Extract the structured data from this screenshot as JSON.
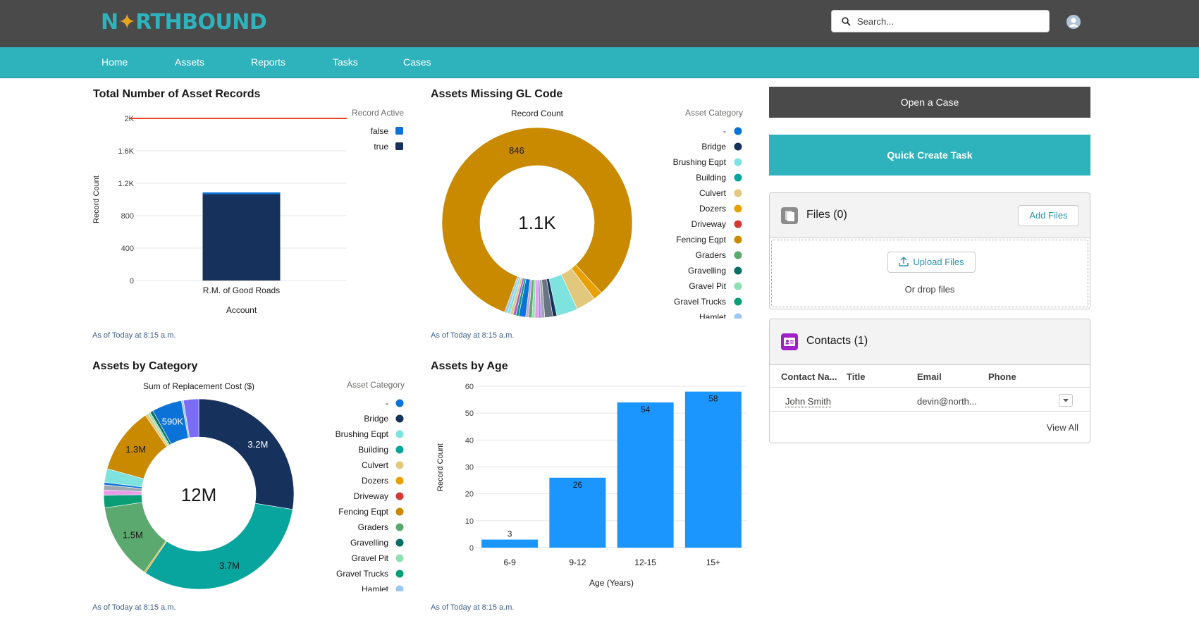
{
  "app": {
    "logo_pre": "N",
    "logo_star": "✦",
    "logo_post": "RTHBOUND",
    "search_placeholder": "Search...",
    "nav": [
      "Home",
      "Assets",
      "Reports",
      "Tasks",
      "Cases"
    ]
  },
  "colors": {
    "header_bg": "#4a4a4a",
    "accent": "#2eb2bb",
    "navy": "#16325c",
    "bar_blue": "#1b96ff",
    "orange": "#c98a00"
  },
  "cards": {
    "c1": {
      "title": "Total Number of Asset Records",
      "note": "As of Today at 8:15 a.m."
    },
    "c2": {
      "title": "Assets Missing GL Code",
      "note": "As of Today at 8:15 a.m."
    },
    "c3": {
      "title": "Assets by Category",
      "note": "As of Today at 8:15 a.m."
    },
    "c4": {
      "title": "Assets by Age",
      "note": "As of Today at 8:15 a.m."
    }
  },
  "chart_data": [
    {
      "type": "bar",
      "stacked": true,
      "categories": [
        "R.M. of Good Roads"
      ],
      "series": [
        {
          "name": "true",
          "values": [
            1065
          ],
          "color": "#16325c"
        },
        {
          "name": "false",
          "values": [
            22
          ],
          "color": "#0b72d7"
        }
      ],
      "yticks": [
        "0",
        "400",
        "800",
        "1.2K",
        "1.6K",
        "2K"
      ],
      "ylim": [
        0,
        2000
      ],
      "xlabel": "Account",
      "ylabel": "Record Count",
      "legend_title": "Record Active",
      "legend_placement": "top-right",
      "goal_line": 2000,
      "goal_color": "#e8441b"
    },
    {
      "type": "pie",
      "donut": true,
      "title": "Record Count",
      "center_label": "1.1K",
      "legend_title": "Asset Category",
      "legend_placement": "right",
      "slice_labels": [
        {
          "category": "Fencing Eqpt",
          "label": "846"
        }
      ],
      "categories": [
        "-",
        "Bridge",
        "Brushing Eqpt",
        "Building",
        "Culvert",
        "Dozers",
        "Driveway",
        "Fencing Eqpt",
        "Graders",
        "Gravelling",
        "Gravel Pit",
        "Gravel Trucks",
        "Hamlet"
      ],
      "legend_colors": [
        "#0b72d7",
        "#16325c",
        "#7ee2de",
        "#08a59e",
        "#e2c87e",
        "#e8a105",
        "#d33a37",
        "#c98a00",
        "#5ca96f",
        "#0a6e65",
        "#8fe0b0",
        "#0a9e77",
        "#9ec7ef"
      ],
      "slices": [
        {
          "category": "Fencing Eqpt",
          "value": 846,
          "color": "#c98a00"
        },
        {
          "category": "Dozers",
          "value": 16,
          "color": "#e8a105"
        },
        {
          "category": "Culvert",
          "value": 34,
          "color": "#e2c87e"
        },
        {
          "category": "Brushing Eqpt",
          "value": 37,
          "color": "#7ee2de"
        },
        {
          "category": "Bridge",
          "value": 7,
          "color": "#16325c"
        },
        {
          "category": "other",
          "value": 14,
          "color": "#6b7482"
        },
        {
          "category": "other",
          "value": 6,
          "color": "#a0a7b1"
        },
        {
          "category": "other",
          "value": 5,
          "color": "#b28ae8"
        },
        {
          "category": "other",
          "value": 6,
          "color": "#e99be8"
        },
        {
          "category": "Gravel Pit",
          "value": 5,
          "color": "#8fe0b0"
        },
        {
          "category": "Graders",
          "value": 6,
          "color": "#5ca96f"
        },
        {
          "category": "other",
          "value": 5,
          "color": "#c8a2d8"
        },
        {
          "category": "-",
          "value": 12,
          "color": "#0b72d7"
        },
        {
          "category": "Gravel Trucks",
          "value": 5,
          "color": "#0a9e77"
        },
        {
          "category": "other",
          "value": 5,
          "color": "#b05bd4"
        },
        {
          "category": "other",
          "value": 5,
          "color": "#e2c87e"
        },
        {
          "category": "other",
          "value": 5,
          "color": "#7ee2de"
        },
        {
          "category": "Hamlet",
          "value": 5,
          "color": "#9ec7ef"
        }
      ]
    },
    {
      "type": "pie",
      "donut": true,
      "title": "Sum of Replacement Cost ($)",
      "center_label": "12M",
      "legend_title": "Asset Category",
      "legend_placement": "right",
      "categories": [
        "-",
        "Bridge",
        "Brushing Eqpt",
        "Building",
        "Culvert",
        "Dozers",
        "Driveway",
        "Fencing Eqpt",
        "Graders",
        "Gravelling",
        "Gravel Pit",
        "Gravel Trucks",
        "Hamlet"
      ],
      "legend_colors": [
        "#0b72d7",
        "#16325c",
        "#7ee2de",
        "#08a59e",
        "#e2c87e",
        "#e8a105",
        "#d33a37",
        "#c98a00",
        "#5ca96f",
        "#0a6e65",
        "#8fe0b0",
        "#0a9e77",
        "#9ec7ef"
      ],
      "slices": [
        {
          "category": "Bridge",
          "value": 3.2,
          "label": "3.2M",
          "color": "#16325c"
        },
        {
          "category": "Building",
          "value": 3.7,
          "label": "3.7M",
          "color": "#08a59e"
        },
        {
          "category": "Dozers",
          "value": 0.03,
          "label": "",
          "color": "#e8a105"
        },
        {
          "category": "Graders",
          "value": 1.5,
          "label": "1.5M",
          "color": "#5ca96f"
        },
        {
          "category": "Gravel Trucks",
          "value": 0.25,
          "label": "",
          "color": "#0a9e77"
        },
        {
          "category": "other",
          "value": 0.1,
          "label": "",
          "color": "#e99be8"
        },
        {
          "category": "other",
          "value": 0.1,
          "label": "",
          "color": "#a0a7b1"
        },
        {
          "category": "-",
          "value": 0.05,
          "label": "",
          "color": "#0b72d7"
        },
        {
          "category": "Brushing Eqpt",
          "value": 0.27,
          "label": "",
          "color": "#7ee2de"
        },
        {
          "category": "Fencing Eqpt",
          "value": 1.3,
          "label": "1.3M",
          "color": "#c98a00"
        },
        {
          "category": "Culvert",
          "value": 0.06,
          "label": "",
          "color": "#e2c87e"
        },
        {
          "category": "Gravel Pit",
          "value": 0.05,
          "label": "",
          "color": "#8fe0b0"
        },
        {
          "category": "other",
          "value": 0.06,
          "label": "",
          "color": "#0a6e65"
        },
        {
          "category": "-",
          "value": 0.59,
          "label": "590K",
          "color": "#0b72d7"
        },
        {
          "category": "Hamlet",
          "value": 0.04,
          "label": "",
          "color": "#9ec7ef"
        },
        {
          "category": "other",
          "value": 0.3,
          "label": "",
          "color": "#7b6cf6"
        }
      ]
    },
    {
      "type": "bar",
      "categories": [
        "6-9",
        "9-12",
        "12-15",
        "15+"
      ],
      "values": [
        3,
        26,
        54,
        58
      ],
      "color": "#1b96ff",
      "xlabel": "Age (Years)",
      "ylabel": "Record Count",
      "yticks": [
        0,
        10,
        20,
        30,
        40,
        50,
        60
      ],
      "ylim": [
        0,
        60
      ]
    }
  ],
  "side": {
    "open_case": "Open a Case",
    "quick_task": "Quick Create Task",
    "files_title": "Files (0)",
    "add_files": "Add Files",
    "upload_files": "Upload Files",
    "drop_files": "Or drop files",
    "contacts_title": "Contacts (1)",
    "columns": [
      "Contact Na...",
      "Title",
      "Email",
      "Phone"
    ],
    "row": {
      "name": "John Smith",
      "title": "",
      "email": "devin@north...",
      "phone": ""
    },
    "view_all": "View All"
  }
}
